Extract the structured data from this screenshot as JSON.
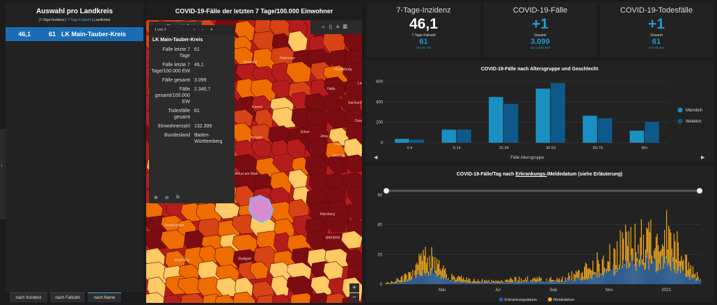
{
  "left_panel": {
    "title": "Auswahl pro Landkreis",
    "subtitle_a": "(7-Tage-Inzidenz | ",
    "subtitle_b": "7-Tage-Fallzahl",
    "subtitle_c": " | Landkreis)",
    "row": {
      "inzidenz": "46,1",
      "fallzahl": "61",
      "name": "LK Main-Tauber-Kreis"
    },
    "sort_buttons": [
      "nach Inzidenz",
      "nach Fallzahl",
      "nach Name"
    ],
    "collapse_icon": "chevron-right-icon"
  },
  "map": {
    "title": "COVID-19-Fälle der letzten 7 Tage/100.000 Einwohner",
    "toolbar": {
      "layer_count": "1"
    },
    "labels": [
      "Hannover",
      "Magdeburg",
      "Halle",
      "Leipzig",
      "Kassel",
      "Erfurt",
      "Jena",
      "Dresden",
      "Chemnitz",
      "Zwickau",
      "Frankfurt am Main",
      "Mannheim",
      "Saarbrücken",
      "Nürnberg",
      "BAYERN",
      "Straßburg",
      "Stuttgart",
      "Ulm",
      "Bielefeld",
      "Hessen",
      "Sachsen"
    ],
    "colors": {
      "dark": "#7a0c12",
      "red": "#b71c1c",
      "orange_red": "#d84315",
      "orange": "#ef6c00",
      "light": "#ffca63",
      "pale": "#ffe9a8"
    },
    "popup": {
      "pager": "1 von 2",
      "title": "LK Main-Tauber-Kreis",
      "fields": [
        {
          "k": "Fälle letzte 7 Tage",
          "v": "61"
        },
        {
          "k": "Fälle letzte 7 Tage/100.000 EW",
          "v": "46,1"
        },
        {
          "k": "Fälle gesamt",
          "v": "3.099"
        },
        {
          "k": "Fälle gesamt/100.000 EW",
          "v": "2.340,7"
        },
        {
          "k": "Todesfälle gesamt",
          "v": "61"
        },
        {
          "k": "Einwohnerzahl",
          "v": "132.399"
        },
        {
          "k": "Bundesland",
          "v": "Baden-Württemberg"
        }
      ]
    },
    "zoom_in": "+",
    "zoom_out": "−"
  },
  "kpis": [
    {
      "label": "7-Tage-Inzidenz",
      "value": "46,1",
      "sub_label": "7-Tage-Fallzahl",
      "sub_value": "61",
      "sub_footer": "von 46.794",
      "accent": "#ffffff"
    },
    {
      "label": "COVID-19-Fälle",
      "value": "+1",
      "sub_label": "Gesamt",
      "sub_value": "3.099",
      "sub_footer": "von 2.542.843",
      "accent": "#1e9bd6"
    },
    {
      "label": "COVID-19-Todesfälle",
      "value": "+1",
      "sub_label": "Gesamt",
      "sub_value": "61",
      "sub_footer": "von 65.604",
      "accent": "#1e9bd6"
    }
  ],
  "chart_data": [
    {
      "type": "bar",
      "title": "COVID-19-Fälle nach Altersgruppe und Geschlecht",
      "categories": [
        "0-4",
        "5-14",
        "15-34",
        "35-59",
        "60-79",
        "80+"
      ],
      "series": [
        {
          "name": "Männlich",
          "color": "#1a8fc1",
          "values": [
            38,
            128,
            448,
            530,
            265,
            118
          ]
        },
        {
          "name": "Weiblich",
          "color": "#0d5a8a",
          "values": [
            30,
            130,
            380,
            585,
            240,
            205
          ]
        }
      ],
      "xlabel": "Fälle Altersgruppe",
      "ylabel": "",
      "yticks": [
        "0",
        "200",
        "400",
        "600"
      ],
      "ylim": [
        0,
        600
      ],
      "grid": true,
      "legend": "right"
    },
    {
      "type": "bar",
      "title_a": "COVID-19-Fälle/Tag nach ",
      "title_b": "Erkrankungs-",
      "title_c": "/Meldedatum (siehe Erläuterung)",
      "x_ticks": [
        "Mai",
        "Jul",
        "Sep",
        "Nov",
        "2021"
      ],
      "yticks": [
        "0",
        "20",
        "40",
        "60"
      ],
      "ylim": [
        0,
        60
      ],
      "series": [
        {
          "name": "Erkrankungsdatum",
          "color": "#1c5fb0"
        },
        {
          "name": "Meldedatum",
          "color": "#f4a91a"
        }
      ],
      "profile": [
        [
          0,
          1,
          0
        ],
        [
          0.08,
          6,
          3
        ],
        [
          0.1,
          12,
          7
        ],
        [
          0.13,
          20,
          10
        ],
        [
          0.16,
          14,
          8
        ],
        [
          0.2,
          6,
          3
        ],
        [
          0.26,
          3,
          1
        ],
        [
          0.34,
          2,
          1
        ],
        [
          0.45,
          4,
          2
        ],
        [
          0.55,
          3,
          2
        ],
        [
          0.62,
          8,
          4
        ],
        [
          0.7,
          18,
          9
        ],
        [
          0.76,
          28,
          14
        ],
        [
          0.82,
          35,
          18
        ],
        [
          0.86,
          26,
          14
        ],
        [
          0.9,
          38,
          16
        ],
        [
          0.94,
          22,
          10
        ],
        [
          0.97,
          10,
          5
        ],
        [
          1,
          4,
          2
        ]
      ],
      "grid": true,
      "legend": "bottom"
    }
  ]
}
